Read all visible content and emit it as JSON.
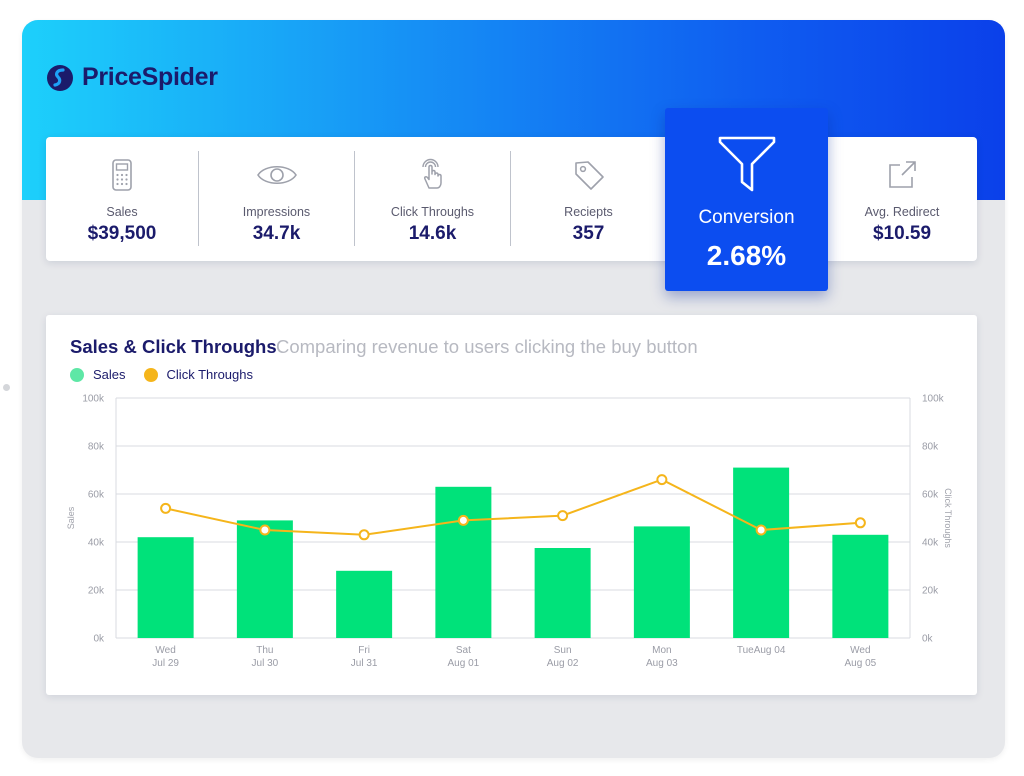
{
  "brand": {
    "name": "PriceSpider",
    "icon": "pricespider-logo-icon"
  },
  "kpis": [
    {
      "label": "Sales",
      "value": "$39,500",
      "icon": "calculator-icon"
    },
    {
      "label": "Impressions",
      "value": "34.7k",
      "icon": "eye-icon"
    },
    {
      "label": "Click Throughs",
      "value": "14.6k",
      "icon": "pointer-hand-icon"
    },
    {
      "label": "Reciepts",
      "value": "357",
      "icon": "tag-icon"
    },
    {
      "label": "Avg. Redirect",
      "value": "$10.59",
      "icon": "external-link-icon"
    }
  ],
  "highlight_kpi": {
    "label": "Conversion",
    "value": "2.68%",
    "icon": "funnel-icon"
  },
  "colors": {
    "brand_navy": "#1b1b6b",
    "highlight_blue": "#0c4df0",
    "sales_green": "#00e27a",
    "click_orange": "#f5b51b"
  },
  "chart_data": {
    "type": "bar",
    "title": "Sales & Click Throughs",
    "subtitle": "Comparing revenue to users clicking the buy button",
    "categories": [
      [
        "Wed",
        "Jul 29"
      ],
      [
        "Thu",
        "Jul 30"
      ],
      [
        "Fri",
        "Jul 31"
      ],
      [
        "Sat",
        "Aug 01"
      ],
      [
        "Sun",
        "Aug 02"
      ],
      [
        "Mon",
        "Aug 03"
      ],
      [
        "TueAug 04",
        ""
      ],
      [
        "Wed",
        "Aug 05"
      ]
    ],
    "series": [
      {
        "name": "Sales",
        "type": "bar",
        "axis": "left",
        "values": [
          42000,
          49000,
          28000,
          63000,
          37500,
          46500,
          71000,
          43000
        ]
      },
      {
        "name": "Click Throughs",
        "type": "line",
        "axis": "right",
        "values": [
          54000,
          45000,
          43000,
          49000,
          51000,
          66000,
          45000,
          48000
        ]
      }
    ],
    "ylabel": "Sales",
    "y2label": "Click Throughs",
    "ylim": [
      0,
      100000
    ],
    "y2lim": [
      0,
      100000
    ],
    "yticks": [
      "0k",
      "20k",
      "40k",
      "60k",
      "80k",
      "100k"
    ],
    "y2ticks": [
      "0k",
      "20k",
      "40k",
      "60k",
      "80k",
      "100k"
    ],
    "grid": true,
    "legend": "top-left"
  }
}
